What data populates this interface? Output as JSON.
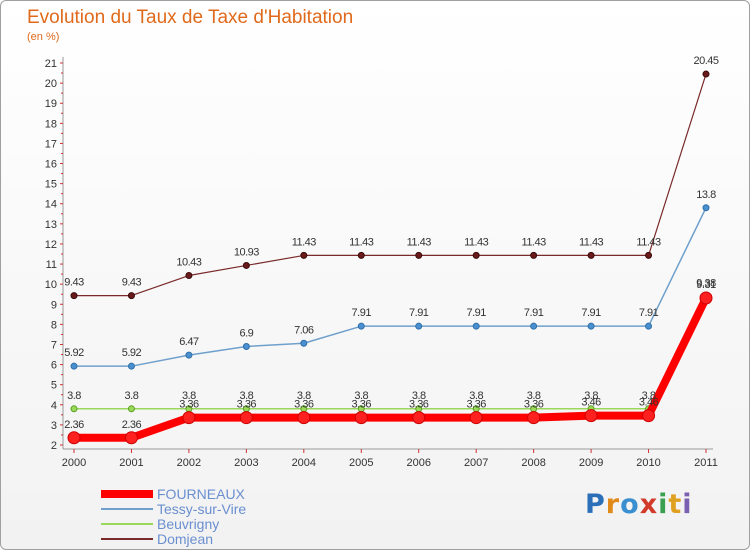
{
  "header": {
    "title": "Evolution du Taux de Taxe d'Habitation",
    "unit": "(en %)"
  },
  "logo": {
    "letters": [
      "P",
      "r",
      "o",
      "x",
      "i",
      "t",
      "i"
    ],
    "colors": [
      "#2a6fb8",
      "#e08a1a",
      "#3a8fd0",
      "#d23a2a",
      "#3aa050",
      "#e0a020",
      "#7a60b0"
    ]
  },
  "chart_data": {
    "type": "line",
    "title": "Evolution du Taux de Taxe d'Habitation",
    "ylabel": "(en %)",
    "xlabel": "",
    "x": [
      "2000",
      "2001",
      "2002",
      "2003",
      "2004",
      "2005",
      "2006",
      "2007",
      "2008",
      "2009",
      "2010",
      "2011"
    ],
    "ylim": [
      2,
      21
    ],
    "yticks": [
      2,
      3,
      4,
      5,
      6,
      7,
      8,
      9,
      10,
      11,
      12,
      13,
      14,
      15,
      16,
      17,
      18,
      19,
      20,
      21
    ],
    "grid": false,
    "legend": "bottom-left",
    "series": [
      {
        "name": "FOURNEAUX",
        "color": "#ff0000",
        "values": [
          2.36,
          2.36,
          3.36,
          3.36,
          3.36,
          3.36,
          3.36,
          3.36,
          3.36,
          3.46,
          3.46,
          9.31
        ],
        "labels": [
          "2.36",
          "2.36",
          "3.36",
          "3.36",
          "3.36",
          "3.36",
          "3.36",
          "3.36",
          "3.36",
          "3.46",
          "3.46",
          "9.31"
        ]
      },
      {
        "name": "Tessy-sur-Vire",
        "color": "#6fa0cc",
        "values": [
          5.92,
          5.92,
          6.47,
          6.9,
          7.06,
          7.91,
          7.91,
          7.91,
          7.91,
          7.91,
          7.91,
          13.8
        ],
        "labels": [
          "5.92",
          "5.92",
          "6.47",
          "6.9",
          "7.06",
          "7.91",
          "7.91",
          "7.91",
          "7.91",
          "7.91",
          "7.91",
          "13.8"
        ]
      },
      {
        "name": "Beuvrigny",
        "color": "#9ad85a",
        "values": [
          3.8,
          3.8,
          3.8,
          3.8,
          3.8,
          3.8,
          3.8,
          3.8,
          3.8,
          3.8,
          3.8,
          9.38
        ],
        "labels": [
          "3.8",
          "3.8",
          "3.8",
          "3.8",
          "3.8",
          "3.8",
          "3.8",
          "3.8",
          "3.8",
          "3.8",
          "3.8",
          "9.38"
        ]
      },
      {
        "name": "Domjean",
        "color": "#7a2a2a",
        "values": [
          9.43,
          9.43,
          10.43,
          10.93,
          11.43,
          11.43,
          11.43,
          11.43,
          11.43,
          11.43,
          11.43,
          20.45
        ],
        "labels": [
          "9.43",
          "9.43",
          "10.43",
          "10.93",
          "11.43",
          "11.43",
          "11.43",
          "11.43",
          "11.43",
          "11.43",
          "11.43",
          "20.45"
        ]
      }
    ]
  }
}
